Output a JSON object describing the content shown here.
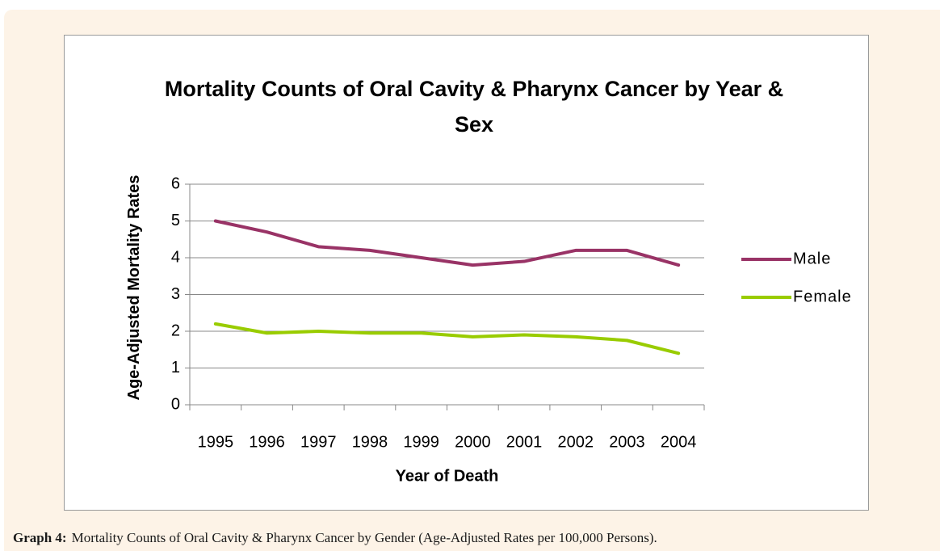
{
  "chart_data": {
    "type": "line",
    "title": "Mortality Counts of Oral Cavity & Pharynx Cancer by Year & Sex",
    "x_label": "Year of Death",
    "y_label": "Age-Adjusted Mortality Rates",
    "categories": [
      "1995",
      "1996",
      "1997",
      "1998",
      "1999",
      "2000",
      "2001",
      "2002",
      "2003",
      "2004"
    ],
    "series": [
      {
        "name": "Male",
        "color": "#993366",
        "values": [
          5.0,
          4.7,
          4.3,
          4.2,
          4.0,
          3.8,
          3.9,
          4.2,
          4.2,
          3.8
        ]
      },
      {
        "name": "Female",
        "color": "#99cc00",
        "values": [
          2.2,
          1.95,
          2.0,
          1.95,
          1.95,
          1.85,
          1.9,
          1.85,
          1.75,
          1.4
        ]
      }
    ],
    "ylim": [
      0,
      6
    ],
    "yticks": [
      0,
      1,
      2,
      3,
      4,
      5,
      6
    ],
    "grid": true,
    "legend": "right"
  },
  "caption": {
    "label": "Graph 4:",
    "text": "Mortality Counts of Oral Cavity & Pharynx Cancer by Gender (Age-Adjusted Rates per 100,000 Persons)."
  }
}
